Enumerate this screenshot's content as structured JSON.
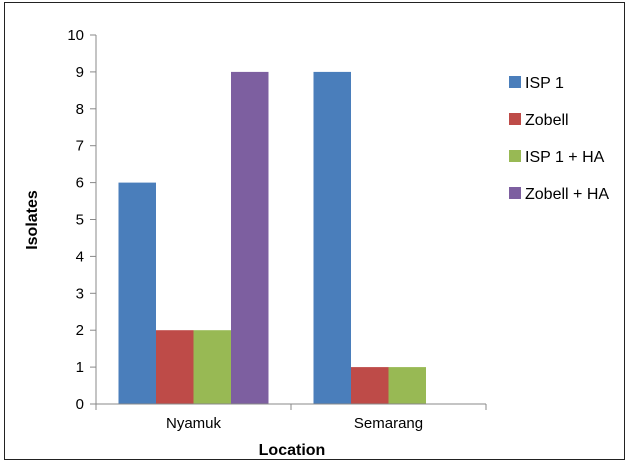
{
  "chart_data": {
    "type": "bar",
    "title": "",
    "xlabel": "Location",
    "ylabel": "Isolates",
    "ylim": [
      0,
      10
    ],
    "yticks": [
      0,
      1,
      2,
      3,
      4,
      5,
      6,
      7,
      8,
      9,
      10
    ],
    "categories": [
      "Nyamuk",
      "Semarang"
    ],
    "series": [
      {
        "name": "ISP 1",
        "color": "#4a7ebb",
        "values": [
          6,
          9
        ]
      },
      {
        "name": "Zobell",
        "color": "#be4b48",
        "values": [
          2,
          1
        ]
      },
      {
        "name": "ISP 1 + HA",
        "color": "#98b954",
        "values": [
          2,
          1
        ]
      },
      {
        "name": "Zobell + HA",
        "color": "#7d5fa0",
        "values": [
          9,
          0
        ]
      }
    ],
    "legend_position": "right",
    "grid": false
  }
}
